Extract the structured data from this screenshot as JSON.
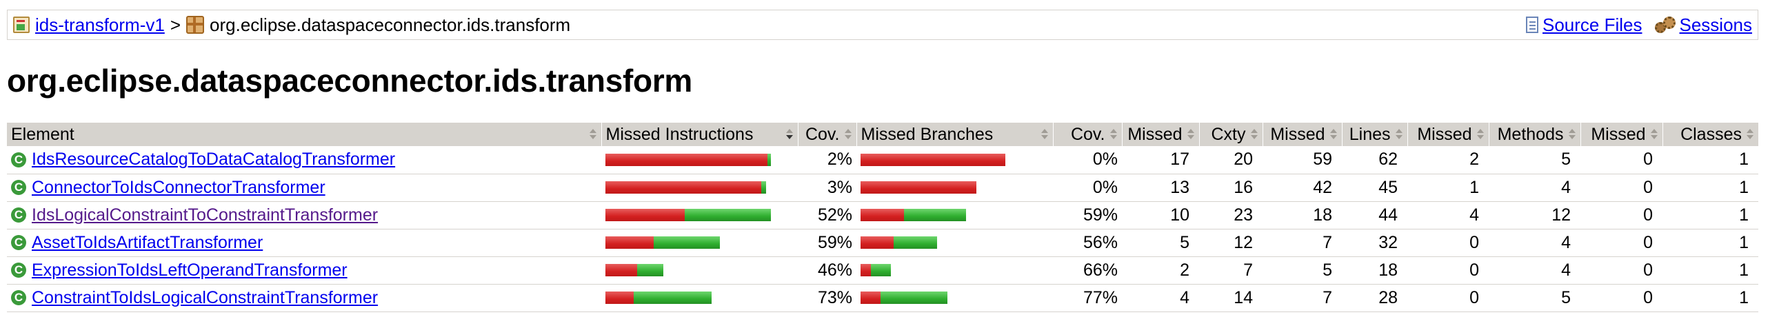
{
  "breadcrumb": {
    "report_link": "ids-transform-v1",
    "separator": ">",
    "package": "org.eclipse.dataspaceconnector.ids.transform",
    "source_files": "Source Files",
    "sessions": "Sessions"
  },
  "page_title": "org.eclipse.dataspaceconnector.ids.transform",
  "table": {
    "headers": [
      "Element",
      "Missed Instructions",
      "Cov.",
      "Missed Branches",
      "Cov.",
      "Missed",
      "Cxty",
      "Missed",
      "Lines",
      "Missed",
      "Methods",
      "Missed",
      "Classes"
    ],
    "rows": [
      {
        "name": "IdsResourceCatalogToDataCatalogTransformer",
        "visited": false,
        "instr_missed_frac": 0.98,
        "instr_total_frac": 1.0,
        "instr_cov": "2%",
        "br_missed_frac": 1.0,
        "br_total_frac": 1.0,
        "br_cov": "0%",
        "cx_missed": "17",
        "cxty": "20",
        "lines_missed": "59",
        "lines": "62",
        "m_missed": "2",
        "methods": "5",
        "c_missed": "0",
        "classes": "1"
      },
      {
        "name": "ConnectorToIdsConnectorTransformer",
        "visited": false,
        "instr_missed_frac": 0.94,
        "instr_total_frac": 0.97,
        "instr_cov": "3%",
        "br_missed_frac": 0.8,
        "br_total_frac": 0.8,
        "br_cov": "0%",
        "cx_missed": "13",
        "cxty": "16",
        "lines_missed": "42",
        "lines": "45",
        "m_missed": "1",
        "methods": "4",
        "c_missed": "0",
        "classes": "1"
      },
      {
        "name": "IdsLogicalConstraintToConstraintTransformer",
        "visited": true,
        "instr_missed_frac": 0.48,
        "instr_total_frac": 1.0,
        "instr_cov": "52%",
        "br_missed_frac": 0.3,
        "br_total_frac": 0.73,
        "br_cov": "59%",
        "cx_missed": "10",
        "cxty": "23",
        "lines_missed": "18",
        "lines": "44",
        "m_missed": "4",
        "methods": "12",
        "c_missed": "0",
        "classes": "1"
      },
      {
        "name": "AssetToIdsArtifactTransformer",
        "visited": false,
        "instr_missed_frac": 0.29,
        "instr_total_frac": 0.69,
        "instr_cov": "59%",
        "br_missed_frac": 0.23,
        "br_total_frac": 0.53,
        "br_cov": "56%",
        "cx_missed": "5",
        "cxty": "12",
        "lines_missed": "7",
        "lines": "32",
        "m_missed": "0",
        "methods": "4",
        "c_missed": "0",
        "classes": "1"
      },
      {
        "name": "ExpressionToIdsLeftOperandTransformer",
        "visited": false,
        "instr_missed_frac": 0.19,
        "instr_total_frac": 0.35,
        "instr_cov": "46%",
        "br_missed_frac": 0.07,
        "br_total_frac": 0.21,
        "br_cov": "66%",
        "cx_missed": "2",
        "cxty": "7",
        "lines_missed": "5",
        "lines": "18",
        "m_missed": "0",
        "methods": "4",
        "c_missed": "0",
        "classes": "1"
      },
      {
        "name": "ConstraintToIdsLogicalConstraintTransformer",
        "visited": false,
        "instr_missed_frac": 0.17,
        "instr_total_frac": 0.64,
        "instr_cov": "73%",
        "br_missed_frac": 0.14,
        "br_total_frac": 0.6,
        "br_cov": "77%",
        "cx_missed": "4",
        "cxty": "14",
        "lines_missed": "7",
        "lines": "28",
        "m_missed": "0",
        "methods": "5",
        "c_missed": "0",
        "classes": "1"
      }
    ]
  },
  "colors": {
    "missed": "#d32020",
    "covered": "#2fae2f",
    "header_bg": "#d6d3ce",
    "link": "#0000ee",
    "visited": "#551a8b"
  }
}
